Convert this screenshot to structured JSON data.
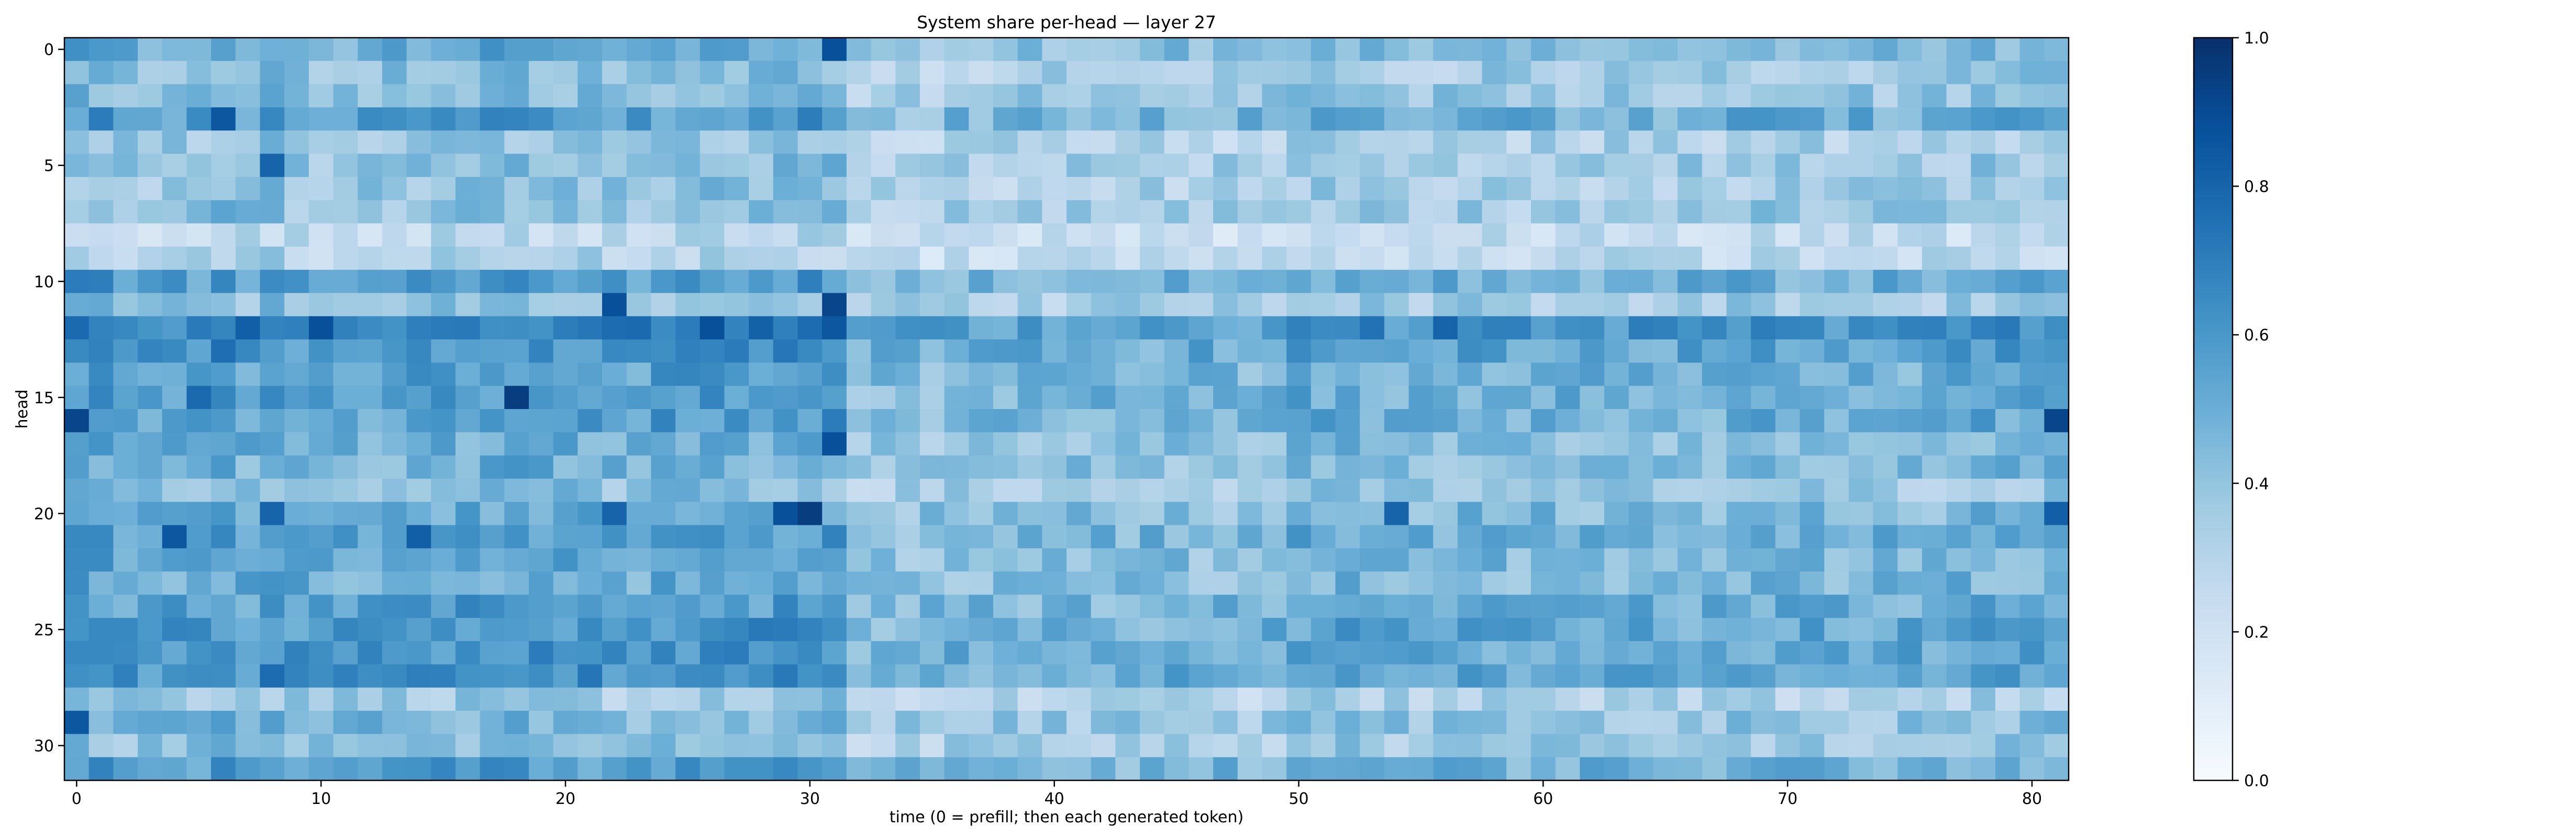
{
  "chart_data": {
    "type": "heatmap",
    "title": "System share per-head — layer 27",
    "xlabel": "time (0 = prefill; then each generated token)",
    "ylabel": "head",
    "colormap": "Blues",
    "n_cols": 82,
    "n_rows": 32,
    "x_ticks": [
      0,
      10,
      20,
      30,
      40,
      50,
      60,
      70,
      80
    ],
    "y_ticks": [
      0,
      5,
      10,
      15,
      20,
      25,
      30
    ],
    "colorbar": {
      "min": 0.0,
      "max": 1.0,
      "ticks": [
        "0.0",
        "0.2",
        "0.4",
        "0.6",
        "0.8",
        "1.0"
      ]
    },
    "row_base": [
      0.5,
      0.4,
      0.42,
      0.55,
      0.36,
      0.4,
      0.38,
      0.4,
      0.26,
      0.3,
      0.55,
      0.4,
      0.68,
      0.6,
      0.55,
      0.55,
      0.55,
      0.48,
      0.48,
      0.4,
      0.5,
      0.55,
      0.5,
      0.5,
      0.55,
      0.58,
      0.58,
      0.6,
      0.35,
      0.45,
      0.4,
      0.55
    ],
    "col_factor": [
      1.1,
      1.1,
      1.0,
      1.0,
      1.0,
      1.0,
      1.1,
      1.0,
      1.1,
      1.0,
      1.0,
      1.0,
      1.0,
      1.0,
      1.05,
      1.05,
      1.05,
      1.05,
      1.1,
      1.05,
      1.05,
      1.05,
      1.0,
      1.0,
      1.05,
      1.05,
      1.1,
      1.1,
      1.05,
      1.05,
      1.1,
      1.1,
      0.8,
      0.8,
      0.8,
      0.8,
      0.85,
      0.85,
      0.85,
      0.85,
      0.85,
      0.85,
      0.85,
      0.85,
      0.85,
      0.85,
      0.85,
      0.85,
      0.85,
      0.85,
      0.95,
      0.95,
      0.95,
      0.95,
      0.9,
      0.9,
      0.9,
      0.9,
      0.9,
      0.9,
      0.9,
      0.9,
      0.9,
      0.9,
      0.9,
      0.9,
      0.9,
      0.9,
      0.95,
      0.95,
      0.9,
      0.9,
      0.9,
      0.9,
      0.9,
      0.9,
      0.9,
      0.95,
      0.95,
      0.95,
      0.95,
      0.95
    ],
    "hotspots": [
      {
        "row": 16,
        "col": 0,
        "value": 0.92
      },
      {
        "row": 29,
        "col": 0,
        "value": 0.85
      },
      {
        "row": 0,
        "col": 31,
        "value": 0.88
      },
      {
        "row": 12,
        "col": 31,
        "value": 0.85
      },
      {
        "row": 15,
        "col": 18,
        "value": 0.95
      },
      {
        "row": 20,
        "col": 29,
        "value": 0.88
      },
      {
        "row": 20,
        "col": 30,
        "value": 0.95
      },
      {
        "row": 17,
        "col": 31,
        "value": 0.88
      },
      {
        "row": 3,
        "col": 6,
        "value": 0.85
      },
      {
        "row": 12,
        "col": 26,
        "value": 0.88
      },
      {
        "row": 12,
        "col": 10,
        "value": 0.88
      },
      {
        "row": 16,
        "col": 81,
        "value": 0.92
      },
      {
        "row": 20,
        "col": 81,
        "value": 0.82
      },
      {
        "row": 11,
        "col": 31,
        "value": 0.92
      },
      {
        "row": 11,
        "col": 22,
        "value": 0.88
      },
      {
        "row": 12,
        "col": 56,
        "value": 0.8
      },
      {
        "row": 21,
        "col": 4,
        "value": 0.85
      },
      {
        "row": 20,
        "col": 8,
        "value": 0.8
      },
      {
        "row": 21,
        "col": 14,
        "value": 0.82
      },
      {
        "row": 20,
        "col": 22,
        "value": 0.8
      },
      {
        "row": 5,
        "col": 8,
        "value": 0.8
      },
      {
        "row": 15,
        "col": 5,
        "value": 0.78
      },
      {
        "row": 12,
        "col": 7,
        "value": 0.82
      },
      {
        "row": 20,
        "col": 54,
        "value": 0.8
      }
    ]
  }
}
